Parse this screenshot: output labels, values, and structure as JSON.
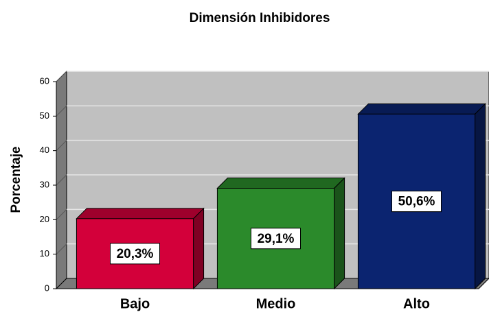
{
  "chart_data": {
    "type": "bar3d",
    "title": "Dimensión Inhibidores",
    "y_label": "Porcentaje",
    "categories": [
      "Bajo",
      "Medio",
      "Alto"
    ],
    "values": [
      20.3,
      29.1,
      50.6
    ],
    "value_labels": [
      "20,3%",
      "29,1%",
      "50,6%"
    ],
    "colors": [
      "#d3003a",
      "#2b8a2b",
      "#0b2470"
    ],
    "ylim": [
      0,
      60
    ],
    "yticks": [
      0,
      10,
      20,
      30,
      40,
      50,
      60
    ],
    "grid": true
  }
}
